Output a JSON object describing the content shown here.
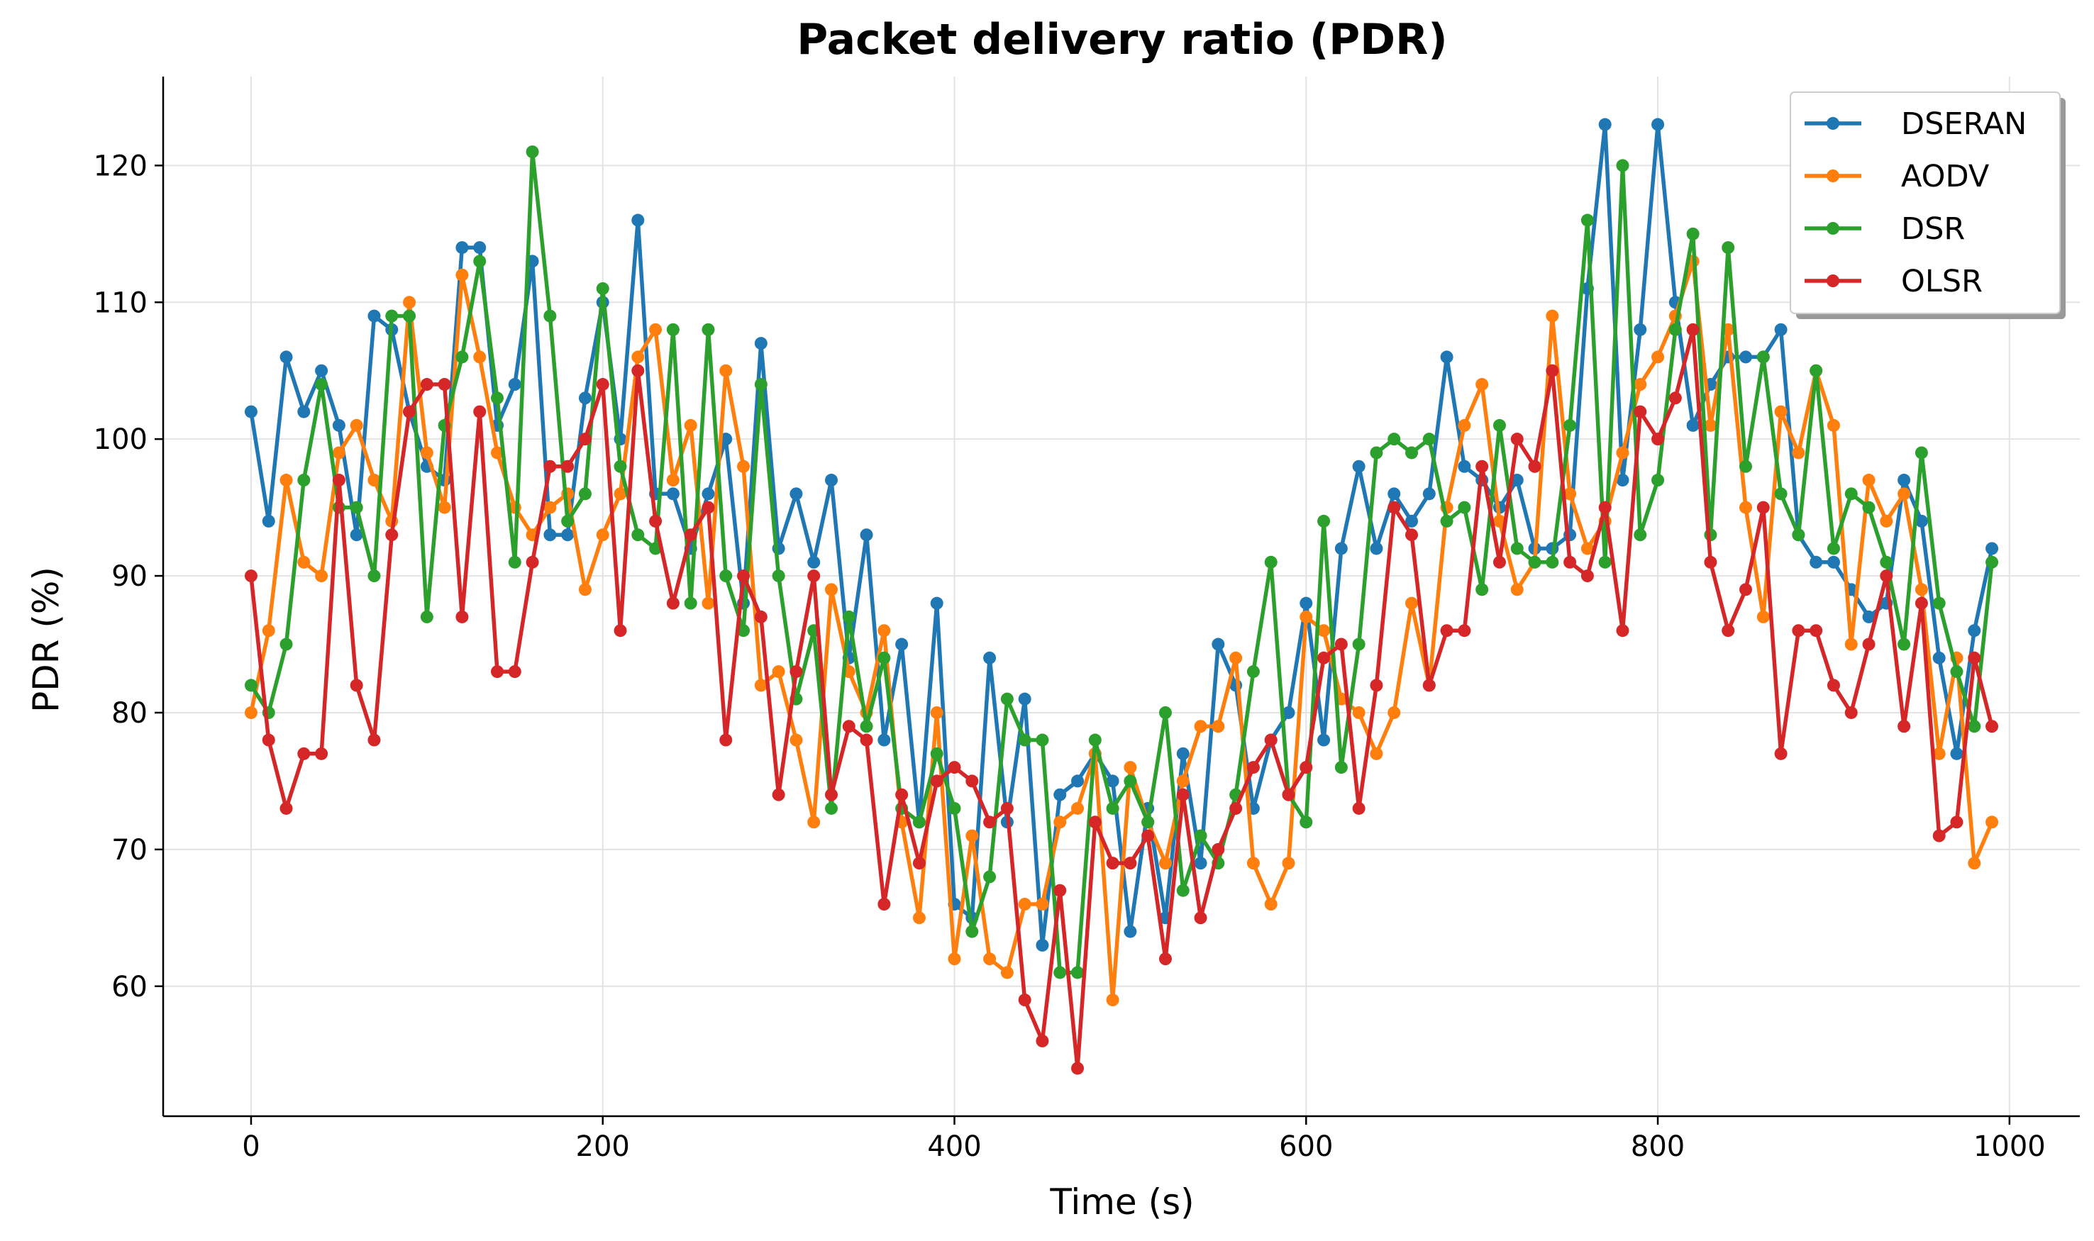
{
  "chart_data": {
    "type": "line",
    "title": "Packet delivery ratio (PDR)",
    "xlabel": "Time (s)",
    "ylabel": "PDR (%)",
    "xlim": [
      -50,
      1040
    ],
    "ylim": [
      50.5,
      126.5
    ],
    "xticks": [
      0,
      200,
      400,
      600,
      800,
      1000
    ],
    "yticks": [
      60,
      70,
      80,
      90,
      100,
      110,
      120
    ],
    "grid": true,
    "legend": "top-right",
    "x": [
      0,
      10,
      20,
      30,
      40,
      50,
      60,
      70,
      80,
      90,
      100,
      110,
      120,
      130,
      140,
      150,
      160,
      170,
      180,
      190,
      200,
      210,
      220,
      230,
      240,
      250,
      260,
      270,
      280,
      290,
      300,
      310,
      320,
      330,
      340,
      350,
      360,
      370,
      380,
      390,
      400,
      410,
      420,
      430,
      440,
      450,
      460,
      470,
      480,
      490,
      500,
      510,
      520,
      530,
      540,
      550,
      560,
      570,
      580,
      590,
      600,
      610,
      620,
      630,
      640,
      650,
      660,
      670,
      680,
      690,
      700,
      710,
      720,
      730,
      740,
      750,
      760,
      770,
      780,
      790,
      800,
      810,
      820,
      830,
      840,
      850,
      860,
      870,
      880,
      890,
      900,
      910,
      920,
      930,
      940,
      950,
      960,
      970,
      980,
      990
    ],
    "series": [
      {
        "name": "DSERAN",
        "color": "#1f77b4",
        "values": [
          102,
          94,
          106,
          102,
          105,
          101,
          93,
          109,
          108,
          102,
          98,
          97,
          114,
          114,
          101,
          104,
          113,
          93,
          93,
          103,
          110,
          100,
          116,
          96,
          96,
          92,
          96,
          100,
          88,
          107,
          92,
          96,
          91,
          97,
          84,
          93,
          78,
          85,
          72,
          88,
          66,
          65,
          84,
          72,
          81,
          63,
          74,
          75,
          77,
          75,
          64,
          73,
          65,
          77,
          69,
          85,
          82,
          73,
          78,
          80,
          88,
          78,
          92,
          98,
          92,
          96,
          94,
          96,
          106,
          98,
          97,
          95,
          97,
          92,
          92,
          93,
          111,
          123,
          97,
          108,
          123,
          110,
          101,
          104,
          106,
          106,
          106,
          108,
          93,
          91,
          91,
          89,
          87,
          88,
          97,
          94,
          84,
          77,
          86,
          92
        ]
      },
      {
        "name": "AODV",
        "color": "#ff7f0e",
        "values": [
          80,
          86,
          97,
          91,
          90,
          99,
          101,
          97,
          94,
          110,
          99,
          95,
          112,
          106,
          99,
          95,
          93,
          95,
          96,
          89,
          93,
          96,
          106,
          108,
          97,
          101,
          88,
          105,
          98,
          82,
          83,
          78,
          72,
          89,
          83,
          80,
          86,
          72,
          65,
          80,
          62,
          71,
          62,
          61,
          66,
          66,
          72,
          73,
          77,
          59,
          76,
          72,
          69,
          75,
          79,
          79,
          84,
          69,
          66,
          69,
          87,
          86,
          81,
          80,
          77,
          80,
          88,
          82,
          95,
          101,
          104,
          94,
          89,
          91,
          109,
          96,
          92,
          94,
          99,
          104,
          106,
          109,
          113,
          101,
          108,
          95,
          87,
          102,
          99,
          105,
          101,
          85,
          97,
          94,
          96,
          89,
          77,
          84,
          69,
          72
        ]
      },
      {
        "name": "DSR",
        "color": "#2ca02c",
        "values": [
          82,
          80,
          85,
          97,
          104,
          95,
          95,
          90,
          109,
          109,
          87,
          101,
          106,
          113,
          103,
          91,
          121,
          109,
          94,
          96,
          111,
          98,
          93,
          92,
          108,
          88,
          108,
          90,
          86,
          104,
          90,
          81,
          86,
          73,
          87,
          79,
          84,
          73,
          72,
          77,
          73,
          64,
          68,
          81,
          78,
          78,
          61,
          61,
          78,
          73,
          75,
          72,
          80,
          67,
          71,
          69,
          74,
          83,
          91,
          74,
          72,
          94,
          76,
          85,
          99,
          100,
          99,
          100,
          94,
          95,
          89,
          101,
          92,
          91,
          91,
          101,
          116,
          91,
          120,
          93,
          97,
          108,
          115,
          93,
          114,
          98,
          106,
          96,
          93,
          105,
          92,
          96,
          95,
          91,
          85,
          99,
          88,
          83,
          79,
          91
        ]
      },
      {
        "name": "OLSR",
        "color": "#d62728",
        "values": [
          90,
          78,
          73,
          77,
          77,
          97,
          82,
          78,
          93,
          102,
          104,
          104,
          87,
          102,
          83,
          83,
          91,
          98,
          98,
          100,
          104,
          86,
          105,
          94,
          88,
          93,
          95,
          78,
          90,
          87,
          74,
          83,
          90,
          74,
          79,
          78,
          66,
          74,
          69,
          75,
          76,
          75,
          72,
          73,
          59,
          56,
          67,
          54,
          72,
          69,
          69,
          71,
          62,
          74,
          65,
          70,
          73,
          76,
          78,
          74,
          76,
          84,
          85,
          73,
          82,
          95,
          93,
          82,
          86,
          86,
          98,
          91,
          100,
          98,
          105,
          91,
          90,
          95,
          86,
          102,
          100,
          103,
          108,
          91,
          86,
          89,
          95,
          77,
          86,
          86,
          82,
          80,
          85,
          90,
          79,
          88,
          71,
          72,
          84,
          79
        ]
      }
    ]
  }
}
